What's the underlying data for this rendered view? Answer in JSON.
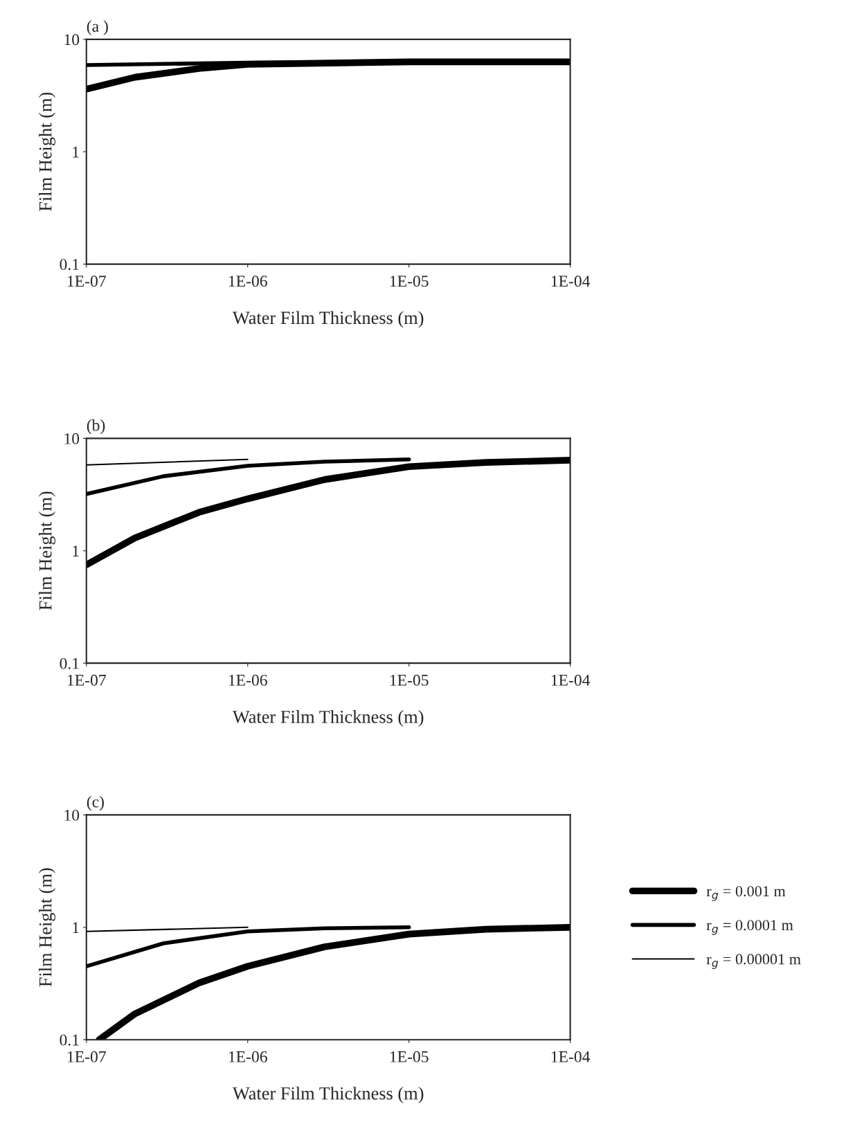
{
  "chart_data": [
    {
      "type": "line",
      "title": "(a )",
      "xlabel": "Water Film Thickness (m)",
      "ylabel": "Film Height (m)",
      "log": "xy",
      "grid": false,
      "legend": false,
      "marker": "none",
      "line_style": "solid",
      "xlim": [
        1e-07,
        0.0001
      ],
      "ylim": [
        0.1,
        10
      ],
      "xticks": [
        {
          "value": 1e-07,
          "label": "1E-07"
        },
        {
          "value": 1e-06,
          "label": "1E-06"
        },
        {
          "value": 1e-05,
          "label": "1E-05"
        },
        {
          "value": 0.0001,
          "label": "1E-04"
        }
      ],
      "yticks": [
        0.1,
        1,
        10
      ],
      "series": [
        {
          "color": "#000000",
          "x": [
            1e-07,
            2e-07,
            5e-07,
            1e-06,
            1e-05,
            0.0001
          ],
          "values": [
            3.6,
            4.6,
            5.5,
            6.0,
            6.3,
            6.3
          ]
        },
        {
          "color": "#000000",
          "x": [
            1e-07,
            1e-06,
            1e-05
          ],
          "values": [
            5.9,
            6.2,
            6.3
          ]
        }
      ]
    },
    {
      "type": "line",
      "title": "(b)",
      "xlabel": "Water Film Thickness (m)",
      "ylabel": "Film Height (m)",
      "log": "xy",
      "grid": false,
      "legend": false,
      "marker": "none",
      "line_style": "solid",
      "xlim": [
        1e-07,
        0.0001
      ],
      "ylim": [
        0.1,
        10
      ],
      "xticks": [
        {
          "value": 1e-07,
          "label": "1E-07"
        },
        {
          "value": 1e-06,
          "label": "1E-06"
        },
        {
          "value": 1e-05,
          "label": "1E-05"
        },
        {
          "value": 0.0001,
          "label": "1E-04"
        }
      ],
      "yticks": [
        0.1,
        1,
        10
      ],
      "series": [
        {
          "color": "#000000",
          "x": [
            1e-07,
            2e-07,
            5e-07,
            1e-06,
            3e-06,
            1e-05,
            3e-05,
            0.0001
          ],
          "values": [
            0.75,
            1.3,
            2.2,
            2.9,
            4.3,
            5.6,
            6.1,
            6.4
          ]
        },
        {
          "color": "#000000",
          "x": [
            1e-07,
            3e-07,
            1e-06,
            3e-06,
            1e-05
          ],
          "values": [
            3.2,
            4.6,
            5.7,
            6.2,
            6.5
          ]
        },
        {
          "color": "#000000",
          "x": [
            1e-07,
            1e-06
          ],
          "values": [
            5.8,
            6.5
          ]
        }
      ]
    },
    {
      "type": "line",
      "title": "(c)",
      "xlabel": "Water Film Thickness (m)",
      "ylabel": "Film Height (m)",
      "log": "xy",
      "grid": false,
      "legend": "right",
      "marker": "none",
      "line_style": "solid",
      "xlim": [
        1e-07,
        0.0001
      ],
      "ylim": [
        0.1,
        10
      ],
      "xticks": [
        {
          "value": 1e-07,
          "label": "1E-07"
        },
        {
          "value": 1e-06,
          "label": "1E-06"
        },
        {
          "value": 1e-05,
          "label": "1E-05"
        },
        {
          "value": 0.0001,
          "label": "1E-04"
        }
      ],
      "yticks": [
        0.1,
        1,
        10
      ],
      "series": [
        {
          "name": "r$_{g}$ = 0.001 m",
          "color": "#000000",
          "x": [
            1.2e-07,
            2e-07,
            5e-07,
            1e-06,
            3e-06,
            1e-05,
            3e-05,
            0.0001
          ],
          "values": [
            0.1,
            0.17,
            0.32,
            0.45,
            0.67,
            0.87,
            0.96,
            1.0
          ]
        },
        {
          "name": "r$_{g}$ = 0.0001 m",
          "color": "#000000",
          "x": [
            1e-07,
            3e-07,
            1e-06,
            3e-06,
            1e-05
          ],
          "values": [
            0.45,
            0.72,
            0.92,
            0.98,
            1.0
          ]
        },
        {
          "name": "r$_{g}$ = 0.00001 m",
          "color": "#000000",
          "x": [
            1e-07,
            1e-06
          ],
          "values": [
            0.92,
            1.0
          ]
        }
      ]
    }
  ]
}
